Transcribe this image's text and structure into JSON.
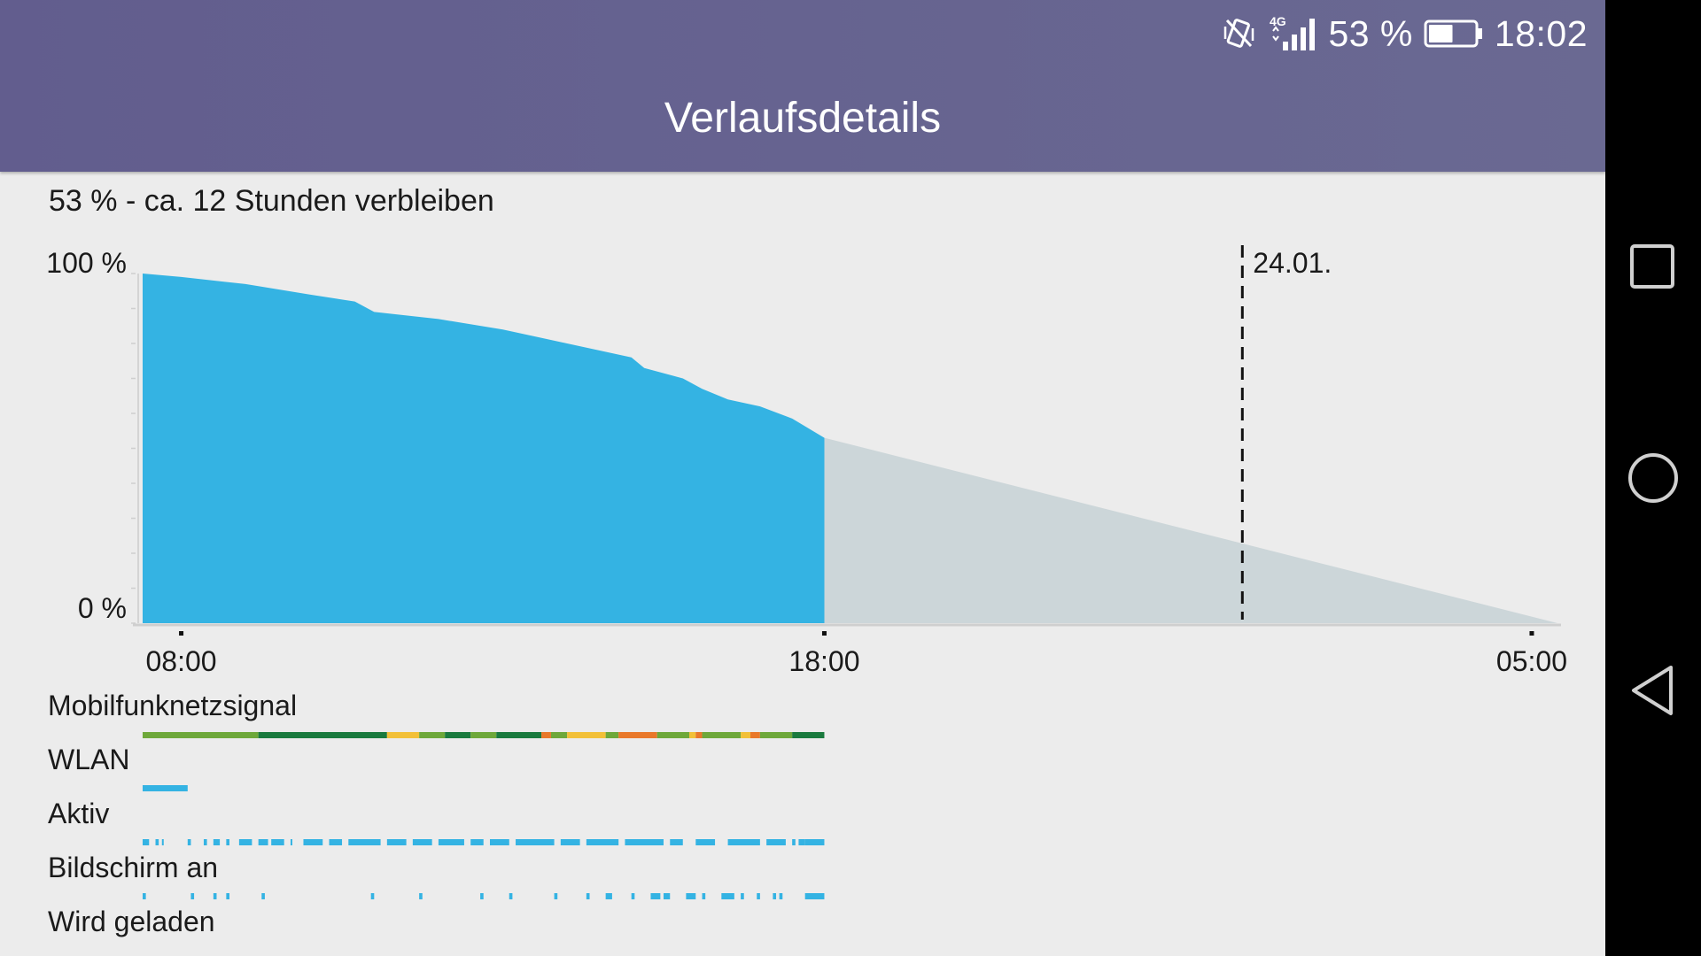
{
  "status_bar": {
    "network_type": "4G",
    "battery_percent": "53 %",
    "battery_level": 0.53,
    "time": "18:02",
    "icons": [
      "vibrate-icon",
      "signal-icon",
      "battery-icon"
    ]
  },
  "app_bar": {
    "title": "Verlaufsdetails",
    "color": "#645f8f"
  },
  "summary": "53 % - ca. 12 Stunden verbleiben",
  "chart_data": {
    "type": "area",
    "title": "",
    "ylim": [
      0,
      100
    ],
    "y_tick_labels": [
      "100 %",
      "0 %"
    ],
    "x_tick_labels": [
      "08:00",
      "18:00",
      "05:00"
    ],
    "x_range_hours": [
      7.4,
      29.4
    ],
    "date_marker": {
      "label": "24.01.",
      "x_hours": 24.5
    },
    "series": [
      {
        "style": "measured",
        "color": "#34b3e3",
        "points": [
          [
            7.4,
            100
          ],
          [
            8.0,
            99
          ],
          [
            9.0,
            97
          ],
          [
            10.0,
            94
          ],
          [
            10.7,
            92
          ],
          [
            11.0,
            89
          ],
          [
            12.0,
            87
          ],
          [
            13.0,
            84
          ],
          [
            14.0,
            80
          ],
          [
            15.0,
            76
          ],
          [
            15.2,
            73
          ],
          [
            15.8,
            70
          ],
          [
            16.1,
            67
          ],
          [
            16.5,
            64
          ],
          [
            17.0,
            62
          ],
          [
            17.5,
            58.5
          ],
          [
            18.0,
            53
          ]
        ]
      },
      {
        "style": "projected",
        "color": "#ccd6d9",
        "points": [
          [
            18.0,
            53
          ],
          [
            29.4,
            0
          ]
        ]
      }
    ]
  },
  "rows": [
    {
      "label": "Mobilfunknetzsignal",
      "type": "signal"
    },
    {
      "label": "WLAN",
      "type": "wlan"
    },
    {
      "label": "Aktiv",
      "type": "ticks"
    },
    {
      "label": "Bildschirm an",
      "type": "ticks"
    },
    {
      "label": "Wird geladen",
      "type": "empty"
    }
  ],
  "timelines": {
    "signal_colors": {
      "strong": "#1a7a3e",
      "good": "#6ea83a",
      "fair": "#f2c038",
      "weak": "#e9782a"
    },
    "signal_segments": [
      [
        "good",
        7.4,
        9.2
      ],
      [
        "strong",
        9.2,
        11.2
      ],
      [
        "fair",
        11.2,
        11.7
      ],
      [
        "good",
        11.7,
        12.1
      ],
      [
        "strong",
        12.1,
        12.5
      ],
      [
        "good",
        12.5,
        12.9
      ],
      [
        "strong",
        12.9,
        13.6
      ],
      [
        "weak",
        13.6,
        13.75
      ],
      [
        "good",
        13.75,
        14.0
      ],
      [
        "fair",
        14.0,
        14.6
      ],
      [
        "good",
        14.6,
        14.8
      ],
      [
        "weak",
        14.8,
        15.4
      ],
      [
        "good",
        15.4,
        15.9
      ],
      [
        "fair",
        15.9,
        16.0
      ],
      [
        "weak",
        16.0,
        16.1
      ],
      [
        "good",
        16.1,
        16.7
      ],
      [
        "fair",
        16.7,
        16.85
      ],
      [
        "weak",
        16.85,
        17.0
      ],
      [
        "good",
        17.0,
        17.5
      ],
      [
        "strong",
        17.5,
        18.0
      ]
    ],
    "wlan_intervals": [
      [
        7.4,
        8.1
      ]
    ],
    "active_intervals": [
      [
        7.4,
        7.5
      ],
      [
        7.6,
        7.65
      ],
      [
        7.7,
        7.72
      ],
      [
        8.1,
        8.15
      ],
      [
        8.35,
        8.4
      ],
      [
        8.5,
        8.6
      ],
      [
        8.7,
        8.75
      ],
      [
        8.9,
        9.1
      ],
      [
        9.2,
        9.35
      ],
      [
        9.4,
        9.6
      ],
      [
        9.7,
        9.72
      ],
      [
        9.9,
        10.2
      ],
      [
        10.3,
        10.5
      ],
      [
        10.6,
        11.1
      ],
      [
        11.2,
        11.5
      ],
      [
        11.6,
        11.9
      ],
      [
        12.0,
        12.4
      ],
      [
        12.5,
        12.7
      ],
      [
        12.8,
        13.1
      ],
      [
        13.2,
        13.8
      ],
      [
        13.9,
        14.2
      ],
      [
        14.3,
        14.8
      ],
      [
        14.9,
        15.5
      ],
      [
        15.6,
        15.8
      ],
      [
        16.0,
        16.3
      ],
      [
        16.5,
        17.0
      ],
      [
        17.1,
        17.4
      ],
      [
        17.5,
        17.55
      ],
      [
        17.6,
        17.7
      ],
      [
        17.7,
        18.0
      ]
    ],
    "screen_intervals": [
      [
        7.4,
        7.45
      ],
      [
        8.15,
        8.2
      ],
      [
        8.5,
        8.55
      ],
      [
        8.7,
        8.75
      ],
      [
        9.25,
        9.3
      ],
      [
        10.95,
        11.0
      ],
      [
        11.7,
        11.75
      ],
      [
        12.65,
        12.7
      ],
      [
        13.1,
        13.15
      ],
      [
        13.8,
        13.85
      ],
      [
        14.3,
        14.35
      ],
      [
        14.6,
        14.7
      ],
      [
        15.0,
        15.05
      ],
      [
        15.3,
        15.45
      ],
      [
        15.5,
        15.6
      ],
      [
        15.85,
        16.0
      ],
      [
        16.1,
        16.15
      ],
      [
        16.4,
        16.6
      ],
      [
        16.7,
        16.75
      ],
      [
        16.95,
        17.0
      ],
      [
        17.2,
        17.25
      ],
      [
        17.3,
        17.35
      ],
      [
        17.7,
        18.0
      ]
    ]
  }
}
